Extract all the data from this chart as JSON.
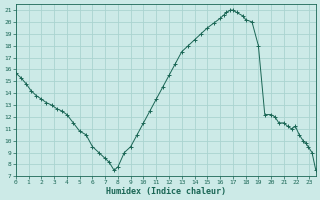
{
  "xlabel": "Humidex (Indice chaleur)",
  "background_color": "#cceae7",
  "grid_color": "#aad4d0",
  "line_color": "#1a6655",
  "marker_color": "#1a6655",
  "xlim": [
    0,
    23.5
  ],
  "ylim": [
    7,
    21.5
  ],
  "yticks": [
    7,
    8,
    9,
    10,
    11,
    12,
    13,
    14,
    15,
    16,
    17,
    18,
    19,
    20,
    21
  ],
  "xticks": [
    0,
    1,
    2,
    3,
    4,
    5,
    6,
    7,
    8,
    9,
    10,
    11,
    12,
    13,
    14,
    15,
    16,
    17,
    18,
    19,
    20,
    21,
    22,
    23
  ],
  "x": [
    0,
    0.4,
    0.8,
    1.2,
    1.6,
    2.0,
    2.4,
    2.8,
    3.2,
    3.6,
    4.0,
    4.5,
    5.0,
    5.5,
    6.0,
    6.5,
    7.0,
    7.3,
    7.7,
    8.0,
    8.5,
    9.0,
    9.5,
    10.0,
    10.5,
    11.0,
    11.5,
    12.0,
    12.5,
    13.0,
    13.5,
    14.0,
    14.5,
    15.0,
    15.5,
    16.0,
    16.3,
    16.5,
    16.8,
    17.0,
    17.3,
    17.8,
    18.0,
    18.5,
    19.0,
    19.5,
    20.0,
    20.3,
    20.6,
    21.0,
    21.3,
    21.6,
    21.9,
    22.2,
    22.5,
    22.7,
    22.9,
    23.2,
    23.5
  ],
  "y": [
    15.7,
    15.3,
    14.8,
    14.2,
    13.8,
    13.5,
    13.2,
    13.0,
    12.7,
    12.5,
    12.2,
    11.5,
    10.8,
    10.5,
    9.5,
    9.0,
    8.5,
    8.2,
    7.5,
    7.8,
    9.0,
    9.5,
    10.5,
    11.5,
    12.5,
    13.5,
    14.5,
    15.5,
    16.5,
    17.5,
    18.0,
    18.5,
    19.0,
    19.5,
    19.9,
    20.3,
    20.6,
    20.8,
    21.0,
    21.0,
    20.8,
    20.5,
    20.2,
    20.0,
    18.0,
    12.2,
    12.2,
    12.0,
    11.5,
    11.5,
    11.2,
    11.0,
    11.2,
    10.5,
    10.0,
    9.8,
    9.5,
    9.0,
    7.5
  ]
}
